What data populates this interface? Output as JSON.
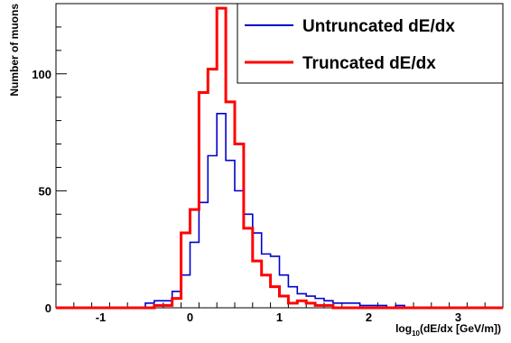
{
  "chart_data": {
    "type": "line",
    "step": true,
    "xlabel_main": "log",
    "xlabel_sub": "10",
    "xlabel_rest": "(dE/dx [GeV/m])",
    "ylabel": "Number of muons",
    "xlim": [
      -1.5,
      3.5
    ],
    "ylim": [
      0,
      130
    ],
    "x_ticks": [
      -1,
      0,
      1,
      2,
      3
    ],
    "y_ticks": [
      0,
      50,
      100
    ],
    "bin_width": 0.1,
    "bin_start": -1.5,
    "legend_position": "top-right",
    "series": [
      {
        "name": "Untruncated dE/dx",
        "color": "#0000cc",
        "values": [
          0,
          0,
          0,
          0,
          0,
          0,
          0,
          0,
          0,
          0,
          2,
          3,
          3,
          7,
          14,
          28,
          45,
          65,
          83,
          63,
          50,
          40,
          32,
          23,
          22,
          14,
          9,
          6,
          5,
          4,
          3,
          2,
          2,
          2,
          1,
          1,
          1,
          0,
          1,
          0,
          0,
          0,
          0,
          0,
          0,
          0,
          0,
          0,
          0,
          0
        ]
      },
      {
        "name": "Truncated dE/dx",
        "color": "#ff0000",
        "values": [
          0,
          0,
          0,
          0,
          0,
          0,
          0,
          0,
          0,
          0,
          0,
          1,
          1,
          4,
          32,
          42,
          92,
          102,
          128,
          88,
          70,
          34,
          20,
          14,
          9,
          5,
          2,
          3,
          2,
          1,
          1,
          0,
          0,
          0,
          0,
          0,
          0,
          0,
          0,
          0,
          0,
          0,
          0,
          0,
          0,
          0,
          0,
          0,
          0,
          0
        ]
      }
    ]
  }
}
